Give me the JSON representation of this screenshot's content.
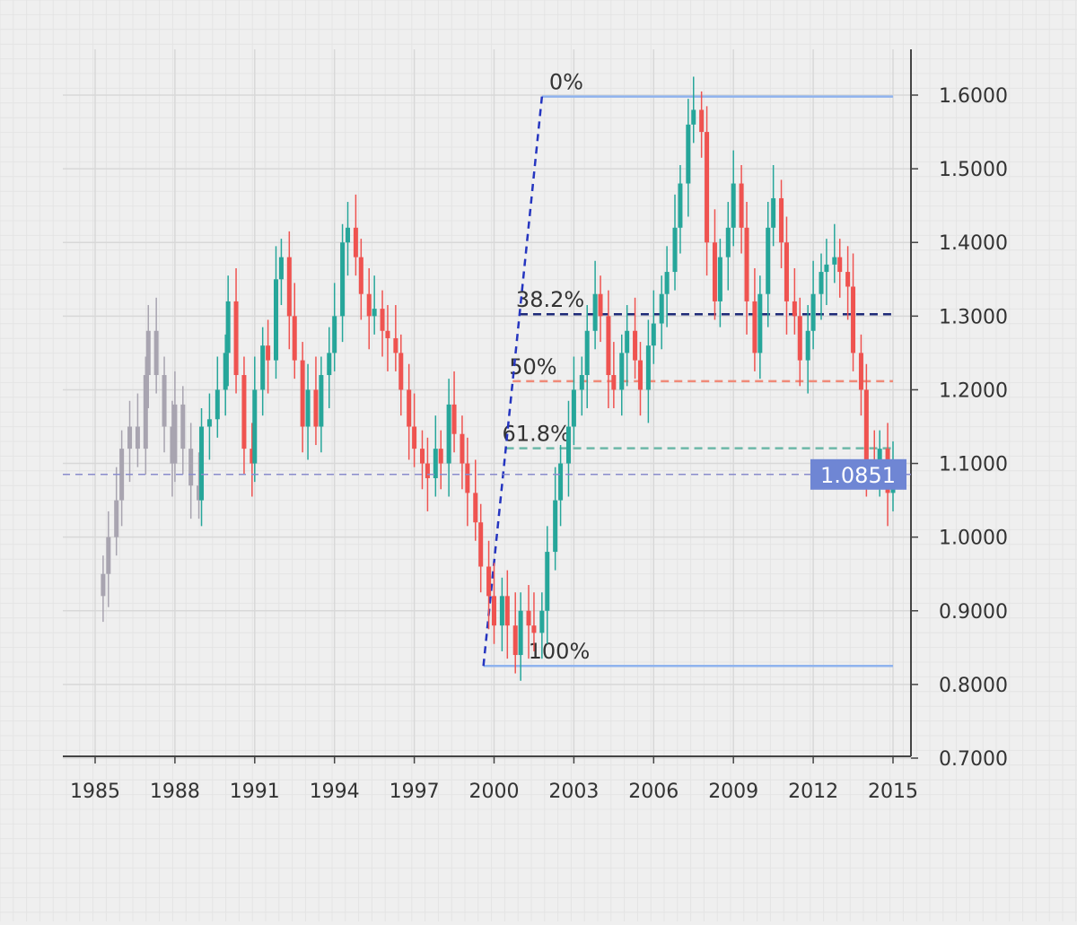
{
  "chart_data": {
    "type": "candlestick",
    "title": "",
    "xlabel": "",
    "ylabel": "",
    "xlim": [
      1984.0,
      2016.0
    ],
    "ylim": [
      0.7,
      1.6
    ],
    "x_ticks": [
      "1985",
      "1988",
      "1991",
      "1994",
      "1997",
      "2000",
      "2003",
      "2006",
      "2009",
      "2012",
      "2015"
    ],
    "y_ticks": [
      "0.7000",
      "0.8000",
      "0.9000",
      "1.0000",
      "1.1000",
      "1.2000",
      "1.3000",
      "1.4000",
      "1.5000",
      "1.6000"
    ],
    "grid": true,
    "axis_position": "right",
    "current_price": {
      "value": 1.0851,
      "label": "1.0851"
    },
    "muted_before": 1989.0,
    "series": {
      "x": [
        1985.3,
        1985.5,
        1985.8,
        1986.0,
        1986.3,
        1986.6,
        1986.9,
        1987.0,
        1987.3,
        1987.6,
        1987.9,
        1988.0,
        1988.3,
        1988.6,
        1988.9,
        1989.0,
        1989.3,
        1989.6,
        1989.9,
        1990.0,
        1990.3,
        1990.6,
        1990.9,
        1991.0,
        1991.3,
        1991.5,
        1991.8,
        1992.0,
        1992.3,
        1992.5,
        1992.8,
        1993.0,
        1993.3,
        1993.5,
        1993.8,
        1994.0,
        1994.3,
        1994.5,
        1994.8,
        1995.0,
        1995.3,
        1995.5,
        1995.8,
        1996.0,
        1996.3,
        1996.5,
        1996.8,
        1997.0,
        1997.3,
        1997.5,
        1997.8,
        1998.0,
        1998.3,
        1998.5,
        1998.8,
        1999.0,
        1999.3,
        1999.5,
        1999.8,
        2000.0,
        2000.3,
        2000.5,
        2000.8,
        2001.0,
        2001.3,
        2001.5,
        2001.8,
        2002.0,
        2002.3,
        2002.5,
        2002.8,
        2003.0,
        2003.3,
        2003.5,
        2003.8,
        2004.0,
        2004.3,
        2004.5,
        2004.8,
        2005.0,
        2005.3,
        2005.5,
        2005.8,
        2006.0,
        2006.3,
        2006.5,
        2006.8,
        2007.0,
        2007.3,
        2007.5,
        2007.8,
        2008.0,
        2008.3,
        2008.5,
        2008.8,
        2009.0,
        2009.3,
        2009.5,
        2009.8,
        2010.0,
        2010.3,
        2010.5,
        2010.8,
        2011.0,
        2011.3,
        2011.5,
        2011.8,
        2012.0,
        2012.3,
        2012.5,
        2012.8,
        2013.0,
        2013.3,
        2013.5,
        2013.8,
        2014.0,
        2014.3,
        2014.5,
        2014.8,
        2015.0
      ],
      "close": [
        0.95,
        1.0,
        1.05,
        1.12,
        1.15,
        1.12,
        1.22,
        1.28,
        1.22,
        1.15,
        1.1,
        1.18,
        1.12,
        1.07,
        1.05,
        1.15,
        1.16,
        1.2,
        1.25,
        1.32,
        1.22,
        1.12,
        1.1,
        1.2,
        1.26,
        1.24,
        1.35,
        1.38,
        1.3,
        1.24,
        1.15,
        1.2,
        1.15,
        1.22,
        1.25,
        1.3,
        1.4,
        1.42,
        1.38,
        1.33,
        1.3,
        1.31,
        1.28,
        1.27,
        1.25,
        1.2,
        1.15,
        1.12,
        1.1,
        1.08,
        1.12,
        1.1,
        1.18,
        1.14,
        1.1,
        1.06,
        1.02,
        0.96,
        0.92,
        0.88,
        0.92,
        0.88,
        0.84,
        0.9,
        0.88,
        0.87,
        0.9,
        0.98,
        1.05,
        1.1,
        1.15,
        1.2,
        1.22,
        1.28,
        1.33,
        1.3,
        1.22,
        1.2,
        1.25,
        1.28,
        1.24,
        1.2,
        1.26,
        1.29,
        1.33,
        1.36,
        1.42,
        1.48,
        1.56,
        1.58,
        1.55,
        1.4,
        1.32,
        1.38,
        1.42,
        1.48,
        1.42,
        1.32,
        1.25,
        1.33,
        1.42,
        1.46,
        1.4,
        1.32,
        1.3,
        1.24,
        1.28,
        1.33,
        1.36,
        1.37,
        1.38,
        1.36,
        1.34,
        1.25,
        1.2,
        1.1,
        1.09,
        1.12,
        1.06,
        1.085
      ]
    },
    "fibonacci": {
      "trend_start": {
        "x": 1999.6,
        "y": 0.8252
      },
      "trend_end": {
        "x": 2001.8,
        "y": 1.598
      },
      "levels": [
        {
          "label": "0%",
          "value": 1.598,
          "color": "#8fb3ee",
          "dashed": false
        },
        {
          "label": "38.2%",
          "value": 1.3026,
          "color": "#1e2a78",
          "dashed": true
        },
        {
          "label": "50%",
          "value": 1.2116,
          "color": "#f08a78",
          "dashed": true
        },
        {
          "label": "61.8%",
          "value": 1.1206,
          "color": "#6cb8a8",
          "dashed": true
        },
        {
          "label": "100%",
          "value": 0.8252,
          "color": "#8fb3ee",
          "dashed": false
        }
      ]
    },
    "colors": {
      "up": "#26a69a",
      "down": "#ef5350",
      "muted": "#a8a4b0",
      "trend_line": "#2535c0",
      "current_line": "#8a8ccc",
      "current_label_bg": "#6f86d4",
      "axis": "#444444",
      "grid": "#d8d8d8"
    }
  }
}
